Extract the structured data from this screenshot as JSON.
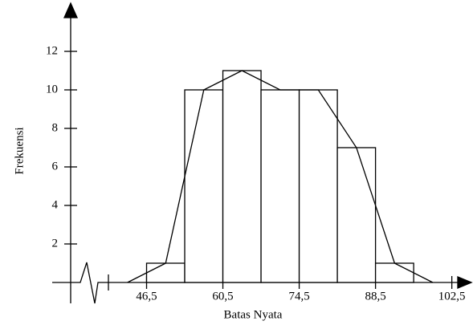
{
  "chart_data": {
    "type": "histogram",
    "xlabel": "Batas Nyata",
    "ylabel": "Frekuensi",
    "bins": [
      46.5,
      53.5,
      60.5,
      67.5,
      74.5,
      81.5,
      88.5,
      95.5
    ],
    "values": [
      1,
      10,
      11,
      10,
      10,
      7,
      1
    ],
    "polygon": {
      "x": [
        43,
        50,
        57,
        64,
        71,
        78,
        85,
        92,
        99
      ],
      "values": [
        0,
        1,
        10,
        11,
        10,
        10,
        7,
        1,
        0
      ]
    },
    "color": "#000000",
    "xlim": [
      39.5,
      105.5
    ],
    "ylim": [
      0,
      14
    ],
    "xticks": [
      {
        "value": 46.5,
        "label": "46,5"
      },
      {
        "value": 60.5,
        "label": "60,5"
      },
      {
        "value": 74.5,
        "label": "74,5"
      },
      {
        "value": 88.5,
        "label": "88,5"
      },
      {
        "value": 102.5,
        "label": "102,5"
      }
    ],
    "yticks": [
      2,
      4,
      6,
      8,
      10,
      12
    ]
  }
}
